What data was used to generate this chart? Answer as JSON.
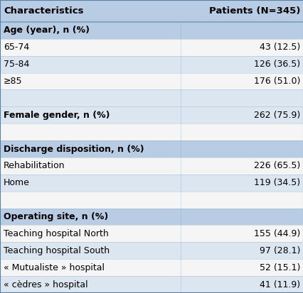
{
  "title_col1": "Characteristics",
  "title_col2": "Patients (N=345)",
  "rows": [
    {
      "label": "Age (year), n (%)",
      "value": "",
      "bold": true,
      "bg": "header_blue"
    },
    {
      "label": "65-74",
      "value": "43 (12.5)",
      "bold": false,
      "bg": "white"
    },
    {
      "label": "75-84",
      "value": "126 (36.5)",
      "bold": false,
      "bg": "light_blue"
    },
    {
      "label": "≥85",
      "value": "176 (51.0)",
      "bold": false,
      "bg": "white"
    },
    {
      "label": "",
      "value": "",
      "bold": false,
      "bg": "light_blue"
    },
    {
      "label": "Female gender, n (%)",
      "value": "262 (75.9)",
      "bold": true,
      "bg": "light_blue"
    },
    {
      "label": "",
      "value": "",
      "bold": false,
      "bg": "white"
    },
    {
      "label": "Discharge disposition, n (%)",
      "value": "",
      "bold": true,
      "bg": "header_blue"
    },
    {
      "label": "Rehabilitation",
      "value": "226 (65.5)",
      "bold": false,
      "bg": "white"
    },
    {
      "label": "Home",
      "value": "119 (34.5)",
      "bold": false,
      "bg": "light_blue"
    },
    {
      "label": "",
      "value": "",
      "bold": false,
      "bg": "white"
    },
    {
      "label": "Operating site, n (%)",
      "value": "",
      "bold": true,
      "bg": "header_blue"
    },
    {
      "label": "Teaching hospital North",
      "value": "155 (44.9)",
      "bold": false,
      "bg": "white"
    },
    {
      "label": "Teaching hospital South",
      "value": "97 (28.1)",
      "bold": false,
      "bg": "light_blue"
    },
    {
      "label": "« Mutualiste » hospital",
      "value": "52 (15.1)",
      "bold": false,
      "bg": "white"
    },
    {
      "label": "« cèdres » hospital",
      "value": "41 (11.9)",
      "bold": false,
      "bg": "light_blue"
    }
  ],
  "colors": {
    "header_blue": "#b8cce4",
    "light_blue": "#dce6f1",
    "white": "#f5f5f5",
    "title_bg": "#b8cce4",
    "border": "#7aa0c0",
    "outer_border": "#5a80a0"
  },
  "font_size_header": 9.5,
  "font_size_row": 9.0,
  "col_split": 0.595,
  "fig_width": 4.27,
  "fig_height": 4.13,
  "dpi": 100
}
